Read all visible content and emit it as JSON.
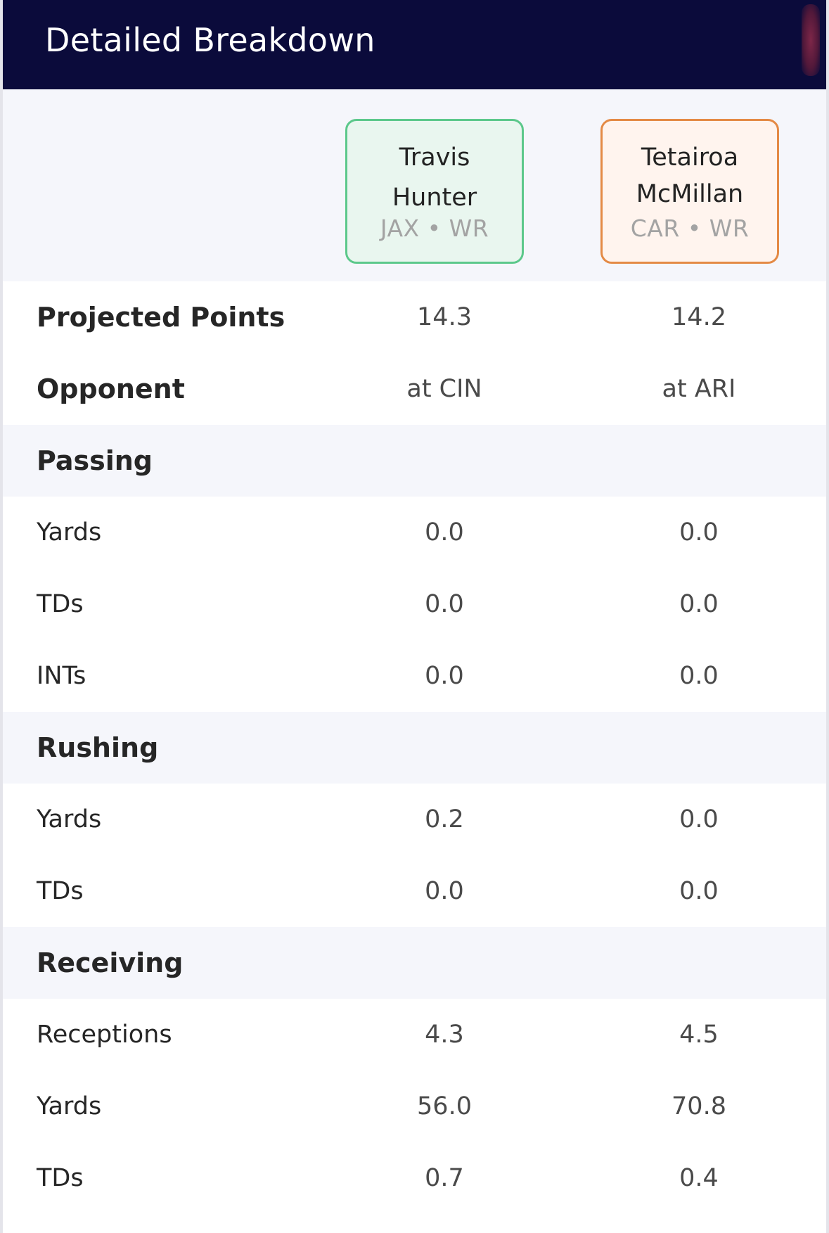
{
  "header": {
    "title": "Detailed Breakdown"
  },
  "players": [
    {
      "name": "Travis Hunter",
      "team": "JAX",
      "position": "WR",
      "meta": "JAX • WR",
      "accent": "#5cc88b"
    },
    {
      "name": "Tetairoa McMillan",
      "team": "CAR",
      "position": "WR",
      "meta": "CAR • WR",
      "accent": "#e48a45"
    }
  ],
  "summary": {
    "projected_points": {
      "label": "Projected Points",
      "a": "14.3",
      "b": "14.2"
    },
    "opponent": {
      "label": "Opponent",
      "a": "at CIN",
      "b": "at ARI"
    }
  },
  "passing": {
    "title": "Passing",
    "rows": [
      {
        "label": "Yards",
        "a": "0.0",
        "b": "0.0"
      },
      {
        "label": "TDs",
        "a": "0.0",
        "b": "0.0"
      },
      {
        "label": "INTs",
        "a": "0.0",
        "b": "0.0"
      }
    ]
  },
  "rushing": {
    "title": "Rushing",
    "rows": [
      {
        "label": "Yards",
        "a": "0.2",
        "b": "0.0"
      },
      {
        "label": "TDs",
        "a": "0.0",
        "b": "0.0"
      }
    ]
  },
  "receiving": {
    "title": "Receiving",
    "rows": [
      {
        "label": "Receptions",
        "a": "4.3",
        "b": "4.5"
      },
      {
        "label": "Yards",
        "a": "56.0",
        "b": "70.8"
      },
      {
        "label": "TDs",
        "a": "0.7",
        "b": "0.4"
      }
    ]
  },
  "colors": {
    "header_bg": "#0b0b3b",
    "section_bg": "#f5f6fb",
    "card_a_bg": "#e9f6ef",
    "card_b_bg": "#fff4ee"
  }
}
